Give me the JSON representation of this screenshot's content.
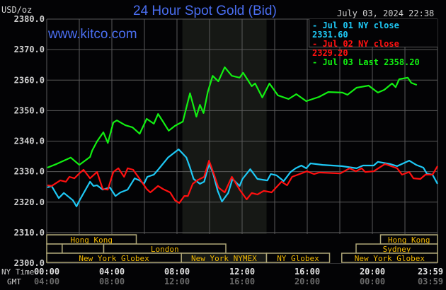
{
  "header": {
    "unit_label": "USD/oz",
    "title": "24 Hour Spot Gold (Bid)",
    "timestamp": "July 03, 2024 22:38",
    "watermark": "www.kitco.com"
  },
  "colors": {
    "background": "#030305",
    "grid": "#5a5a5a",
    "title": "#4a6ef0",
    "session_text": "#f2b800",
    "session_border": "#b0a878",
    "shade": "#161815"
  },
  "chart_data": {
    "type": "line",
    "ylim": [
      2300,
      2380
    ],
    "xlim_hours": [
      0,
      24
    ],
    "yticks": [
      "2300.0",
      "2310.0",
      "2320.0",
      "2330.0",
      "2340.0",
      "2350.0",
      "2360.0",
      "2370.0",
      "2380.0"
    ],
    "xaxis": {
      "row_labels": [
        "NY Time",
        "GMT"
      ],
      "ny_ticks": [
        "00:00",
        "04:00",
        "08:00",
        "12:00",
        "16:00",
        "20:00",
        "23:59"
      ],
      "gmt_ticks": [
        "04:00",
        "08:00",
        "12:00",
        "16:00",
        "20:00",
        "00:00",
        "03:59"
      ]
    },
    "grid": true,
    "legend_position": "top-right",
    "shaded_hours": [
      8.33,
      13.5
    ],
    "series": [
      {
        "name": "Jul 01 NY close 2331.60",
        "color": "#1ec8f5",
        "points": [
          [
            0.04,
            2324.8
          ],
          [
            0.3,
            2325.3
          ],
          [
            0.74,
            2321.3
          ],
          [
            1.05,
            2323.0
          ],
          [
            1.61,
            2320.6
          ],
          [
            1.83,
            2318.6
          ],
          [
            2.05,
            2320.9
          ],
          [
            2.66,
            2326.7
          ],
          [
            2.87,
            2325.3
          ],
          [
            3.09,
            2325.5
          ],
          [
            3.44,
            2324.1
          ],
          [
            3.88,
            2324.8
          ],
          [
            4.22,
            2322.0
          ],
          [
            4.53,
            2323.2
          ],
          [
            4.97,
            2324.1
          ],
          [
            5.4,
            2327.8
          ],
          [
            5.71,
            2327.1
          ],
          [
            5.97,
            2326.0
          ],
          [
            6.18,
            2328.3
          ],
          [
            6.58,
            2329.0
          ],
          [
            6.84,
            2330.6
          ],
          [
            7.45,
            2334.6
          ],
          [
            8.1,
            2337.3
          ],
          [
            8.58,
            2334.6
          ],
          [
            8.8,
            2331.3
          ],
          [
            9.02,
            2327.6
          ],
          [
            9.41,
            2326.0
          ],
          [
            9.67,
            2326.7
          ],
          [
            9.97,
            2332.5
          ],
          [
            10.19,
            2329.9
          ],
          [
            10.5,
            2323.7
          ],
          [
            10.76,
            2320.2
          ],
          [
            11.15,
            2323.0
          ],
          [
            11.41,
            2327.6
          ],
          [
            11.85,
            2325.3
          ],
          [
            12.02,
            2327.6
          ],
          [
            12.5,
            2330.8
          ],
          [
            12.94,
            2327.6
          ],
          [
            13.55,
            2327.1
          ],
          [
            13.76,
            2329.2
          ],
          [
            14.11,
            2328.8
          ],
          [
            14.55,
            2326.9
          ],
          [
            14.98,
            2329.9
          ],
          [
            15.29,
            2331.1
          ],
          [
            15.64,
            2332.0
          ],
          [
            15.94,
            2331.1
          ],
          [
            16.2,
            2332.7
          ],
          [
            16.94,
            2332.2
          ],
          [
            18.12,
            2331.8
          ],
          [
            19.03,
            2331.1
          ],
          [
            19.43,
            2332.0
          ],
          [
            20.08,
            2332.0
          ],
          [
            20.34,
            2333.2
          ],
          [
            21.08,
            2332.5
          ],
          [
            21.52,
            2331.8
          ],
          [
            22.26,
            2333.6
          ],
          [
            22.69,
            2332.2
          ],
          [
            23.13,
            2331.3
          ],
          [
            23.34,
            2329.4
          ],
          [
            23.69,
            2329.0
          ],
          [
            24.0,
            2326.0
          ]
        ]
      },
      {
        "name": "Jul 02 NY close 2329.20",
        "color": "#ff1010",
        "points": [
          [
            0.04,
            2325.5
          ],
          [
            0.3,
            2325.3
          ],
          [
            0.83,
            2327.1
          ],
          [
            1.18,
            2326.7
          ],
          [
            1.39,
            2328.3
          ],
          [
            1.7,
            2327.8
          ],
          [
            2.0,
            2329.4
          ],
          [
            2.26,
            2330.6
          ],
          [
            2.66,
            2327.8
          ],
          [
            3.09,
            2329.9
          ],
          [
            3.44,
            2324.3
          ],
          [
            3.75,
            2324.1
          ],
          [
            4.09,
            2329.9
          ],
          [
            4.4,
            2331.1
          ],
          [
            4.75,
            2328.3
          ],
          [
            4.97,
            2331.1
          ],
          [
            5.31,
            2330.6
          ],
          [
            5.71,
            2327.6
          ],
          [
            6.14,
            2324.3
          ],
          [
            6.36,
            2323.2
          ],
          [
            6.84,
            2325.3
          ],
          [
            7.14,
            2324.3
          ],
          [
            7.58,
            2323.2
          ],
          [
            7.88,
            2320.6
          ],
          [
            8.14,
            2319.7
          ],
          [
            8.45,
            2322.0
          ],
          [
            8.67,
            2322.0
          ],
          [
            8.97,
            2326.0
          ],
          [
            9.23,
            2327.1
          ],
          [
            9.67,
            2328.3
          ],
          [
            9.97,
            2333.6
          ],
          [
            10.28,
            2329.0
          ],
          [
            10.54,
            2324.8
          ],
          [
            10.93,
            2323.2
          ],
          [
            11.37,
            2328.3
          ],
          [
            11.85,
            2324.1
          ],
          [
            12.28,
            2320.9
          ],
          [
            12.59,
            2323.0
          ],
          [
            12.94,
            2322.5
          ],
          [
            13.33,
            2323.7
          ],
          [
            13.81,
            2323.2
          ],
          [
            14.42,
            2326.7
          ],
          [
            14.76,
            2325.5
          ],
          [
            15.07,
            2328.3
          ],
          [
            15.98,
            2330.1
          ],
          [
            16.42,
            2329.2
          ],
          [
            16.72,
            2329.7
          ],
          [
            18.03,
            2329.4
          ],
          [
            18.6,
            2331.1
          ],
          [
            18.99,
            2330.1
          ],
          [
            19.34,
            2331.1
          ],
          [
            19.56,
            2329.9
          ],
          [
            20.08,
            2330.1
          ],
          [
            20.78,
            2332.5
          ],
          [
            21.52,
            2331.1
          ],
          [
            21.82,
            2329.0
          ],
          [
            22.26,
            2329.9
          ],
          [
            22.52,
            2327.8
          ],
          [
            22.95,
            2327.6
          ],
          [
            23.26,
            2329.0
          ],
          [
            23.69,
            2329.0
          ],
          [
            24.0,
            2331.8
          ]
        ]
      },
      {
        "name": "Jul 03 Last 2358.20",
        "color": "#12f012",
        "points": [
          [
            0.04,
            2331.3
          ],
          [
            0.61,
            2332.5
          ],
          [
            1.48,
            2334.6
          ],
          [
            2.0,
            2332.2
          ],
          [
            2.66,
            2334.8
          ],
          [
            2.79,
            2336.9
          ],
          [
            3.09,
            2339.9
          ],
          [
            3.48,
            2342.9
          ],
          [
            3.75,
            2339.4
          ],
          [
            4.09,
            2346.1
          ],
          [
            4.31,
            2346.8
          ],
          [
            4.83,
            2345.2
          ],
          [
            5.27,
            2344.5
          ],
          [
            5.71,
            2342.4
          ],
          [
            6.14,
            2347.3
          ],
          [
            6.58,
            2345.7
          ],
          [
            6.84,
            2348.9
          ],
          [
            7.14,
            2346.4
          ],
          [
            7.49,
            2343.4
          ],
          [
            7.88,
            2345.0
          ],
          [
            8.36,
            2346.4
          ],
          [
            8.8,
            2355.7
          ],
          [
            9.19,
            2348.0
          ],
          [
            9.41,
            2351.9
          ],
          [
            9.63,
            2349.2
          ],
          [
            9.89,
            2356.1
          ],
          [
            10.19,
            2361.4
          ],
          [
            10.54,
            2359.6
          ],
          [
            10.93,
            2364.2
          ],
          [
            11.37,
            2361.4
          ],
          [
            11.85,
            2360.8
          ],
          [
            12.06,
            2362.4
          ],
          [
            12.59,
            2358.0
          ],
          [
            12.8,
            2358.9
          ],
          [
            13.24,
            2354.3
          ],
          [
            13.68,
            2358.9
          ],
          [
            14.2,
            2355.0
          ],
          [
            14.85,
            2353.8
          ],
          [
            15.33,
            2355.4
          ],
          [
            15.94,
            2353.1
          ],
          [
            16.72,
            2354.5
          ],
          [
            17.29,
            2356.1
          ],
          [
            18.16,
            2355.9
          ],
          [
            18.47,
            2355.2
          ],
          [
            19.03,
            2357.5
          ],
          [
            19.77,
            2358.2
          ],
          [
            20.34,
            2355.9
          ],
          [
            20.73,
            2356.8
          ],
          [
            21.21,
            2358.9
          ],
          [
            21.43,
            2357.7
          ],
          [
            21.65,
            2360.3
          ],
          [
            22.17,
            2360.8
          ],
          [
            22.39,
            2359.1
          ],
          [
            22.73,
            2358.4
          ]
        ]
      }
    ]
  },
  "sessions": [
    {
      "label": "Hong Kong",
      "row": 0,
      "start": 0,
      "end": 5.5,
      "show": true
    },
    {
      "label": "Hong Kong",
      "row": 0,
      "start": 20.5,
      "end": 24,
      "show": true
    },
    {
      "label": "",
      "row": 1,
      "start": 0,
      "end": 0.95,
      "show": false
    },
    {
      "label": "",
      "row": 1,
      "start": 0.95,
      "end": 3.5,
      "show": false
    },
    {
      "label": "London",
      "row": 1,
      "start": 3.5,
      "end": 11,
      "show": true
    },
    {
      "label": "Sydney",
      "row": 1,
      "start": 19,
      "end": 24,
      "show": true
    },
    {
      "label": "New York Globex",
      "row": 2,
      "start": 0,
      "end": 8.27,
      "show": true
    },
    {
      "label": "New York NYMEX",
      "row": 2,
      "start": 8.27,
      "end": 13.5,
      "show": true
    },
    {
      "label": "NY Globex",
      "row": 2,
      "start": 13.5,
      "end": 17.37,
      "show": true
    },
    {
      "label": "New York Globex",
      "row": 2,
      "start": 18.12,
      "end": 24,
      "show": true
    }
  ]
}
